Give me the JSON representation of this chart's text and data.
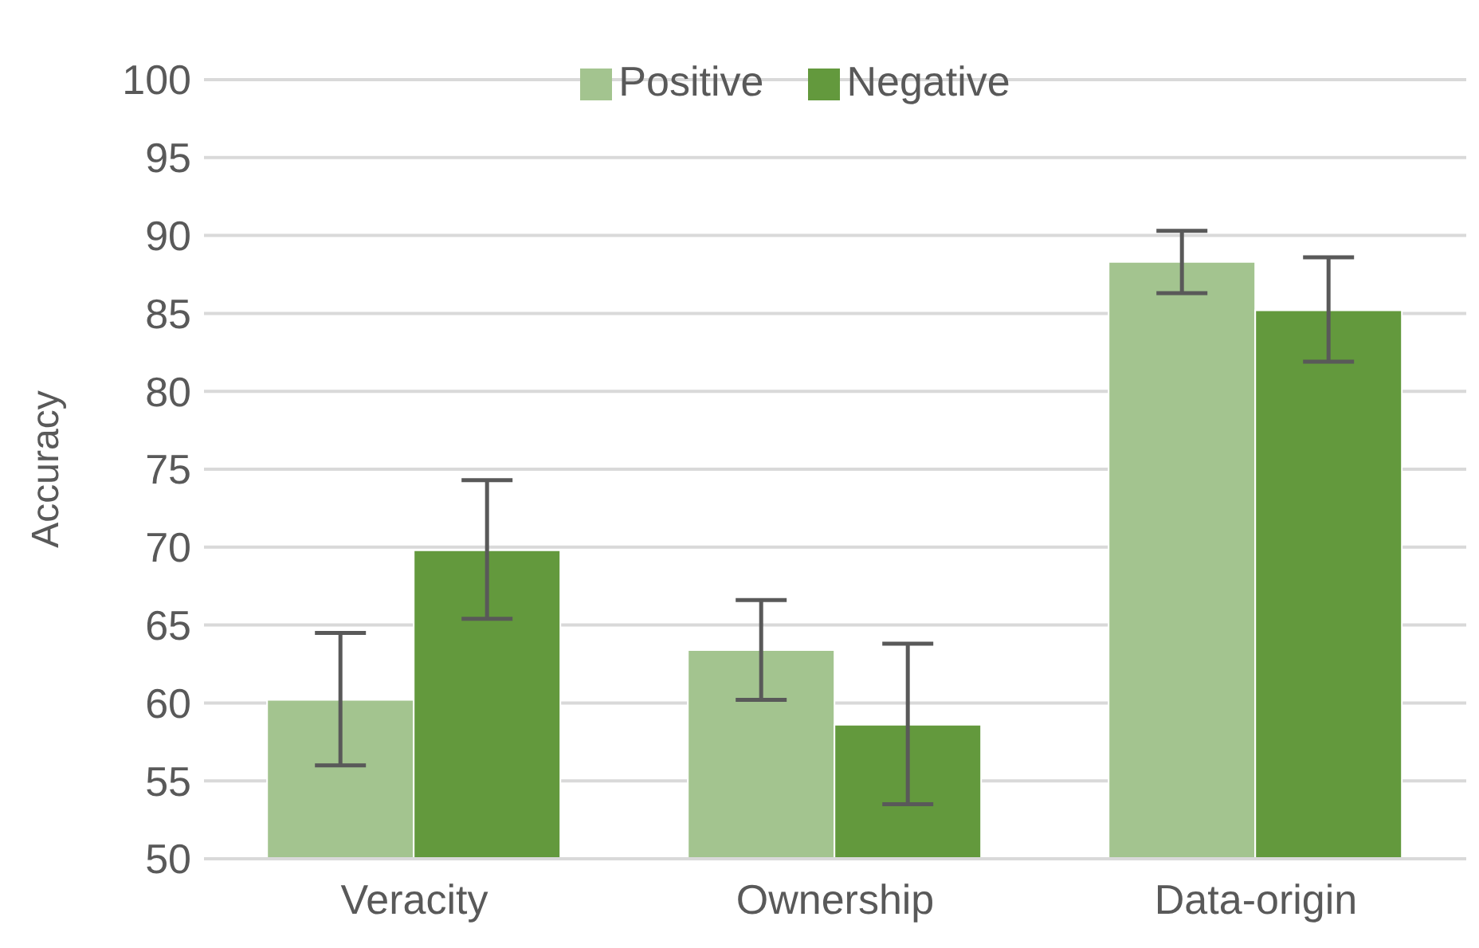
{
  "chart_data": {
    "type": "bar",
    "ylabel": "Accuracy",
    "categories": [
      "Veracity",
      "Ownership",
      "Data-origin"
    ],
    "series": [
      {
        "name": "Positive",
        "color": "#a3c48f",
        "values": [
          60.2,
          63.4,
          88.3
        ],
        "errors": [
          [
            56.0,
            64.5
          ],
          [
            60.2,
            66.6
          ],
          [
            86.3,
            90.3
          ]
        ]
      },
      {
        "name": "Negative",
        "color": "#63993d",
        "values": [
          69.8,
          58.6,
          85.2
        ],
        "errors": [
          [
            65.4,
            74.3
          ],
          [
            53.5,
            63.8
          ],
          [
            81.9,
            88.6
          ]
        ]
      }
    ],
    "ylim": [
      50,
      100
    ],
    "yticks": [
      50,
      55,
      60,
      65,
      70,
      75,
      80,
      85,
      90,
      95,
      100
    ],
    "grid": "y",
    "legend": "top"
  }
}
